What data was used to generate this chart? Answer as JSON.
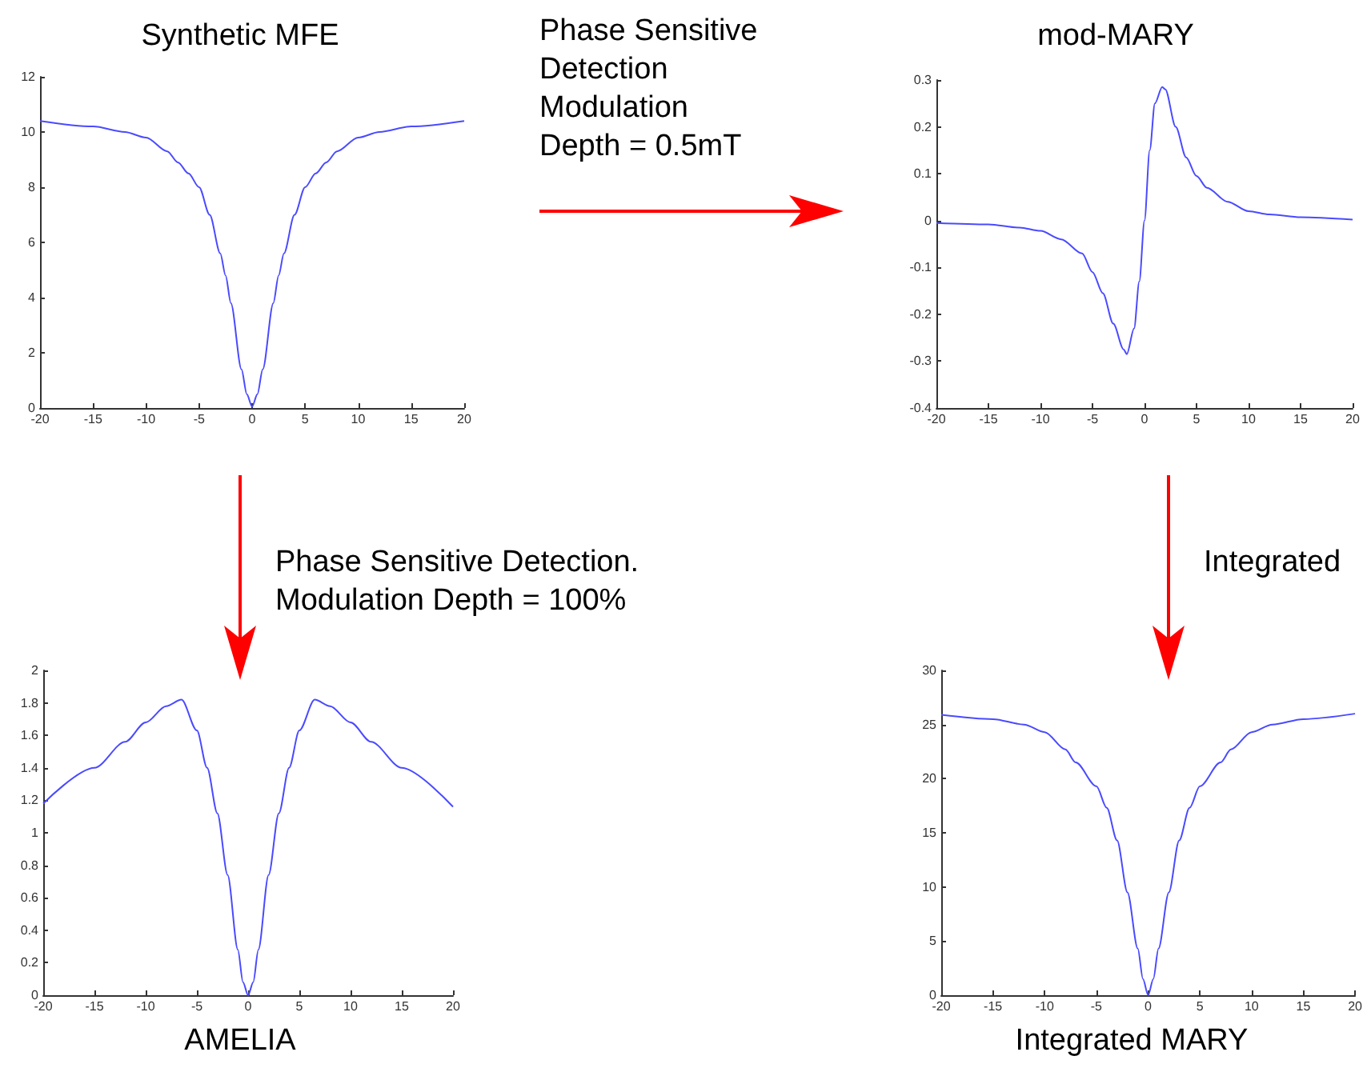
{
  "chart_data": [
    {
      "type": "line",
      "title": "Synthetic MFE",
      "annotations": [
        "Phase Sensitive\nDetection\nModulation\nDepth = 0.5mT",
        "Phase Sensitive Detection.\nModulation Depth = 100%"
      ],
      "xlim": [
        -20,
        20
      ],
      "xticks": [
        -20,
        -15,
        -10,
        -5,
        0,
        5,
        10,
        15,
        20
      ],
      "ylim": [
        0,
        12
      ],
      "yticks": [
        0,
        2,
        4,
        6,
        8,
        10,
        12
      ],
      "grid": false,
      "marker": "none",
      "series": [
        {
          "color": "#4a4aff",
          "x": [
            -20,
            -15,
            -12,
            -10,
            -8,
            -7,
            -6,
            -5,
            -4,
            -3,
            -2.5,
            -2,
            -1,
            -0.5,
            0,
            0.5,
            1,
            2,
            2.5,
            3,
            4,
            5,
            6,
            7,
            8,
            10,
            12,
            15,
            20
          ],
          "values": [
            10.4,
            10.2,
            10.0,
            9.8,
            9.3,
            8.9,
            8.5,
            8.0,
            7.0,
            5.6,
            4.8,
            3.8,
            1.4,
            0.5,
            0.05,
            0.5,
            1.4,
            3.8,
            4.8,
            5.6,
            7.0,
            8.0,
            8.5,
            8.9,
            9.3,
            9.8,
            10.0,
            10.2,
            10.4
          ]
        }
      ]
    },
    {
      "type": "line",
      "title": "mod-MARY",
      "annotations": [
        "Integrated"
      ],
      "xlim": [
        -20,
        20
      ],
      "xticks": [
        -20,
        -15,
        -10,
        -5,
        0,
        5,
        10,
        15,
        20
      ],
      "ylim": [
        -0.4,
        0.3
      ],
      "yticks": [
        -0.4,
        -0.3,
        -0.2,
        -0.1,
        0,
        0.1,
        0.2,
        0.3
      ],
      "grid": false,
      "marker": "none",
      "series": [
        {
          "color": "#4a4aff",
          "x": [
            -20,
            -15,
            -12,
            -10,
            -8,
            -6,
            -5,
            -4,
            -3,
            -2,
            -1.7,
            -1,
            -0.5,
            0,
            0.5,
            1,
            1.7,
            2,
            3,
            4,
            5,
            6,
            8,
            10,
            12,
            15,
            20
          ],
          "values": [
            -0.005,
            -0.008,
            -0.015,
            -0.022,
            -0.04,
            -0.07,
            -0.11,
            -0.155,
            -0.22,
            -0.275,
            -0.285,
            -0.23,
            -0.13,
            0.0,
            0.15,
            0.25,
            0.285,
            0.28,
            0.2,
            0.135,
            0.095,
            0.07,
            0.04,
            0.02,
            0.013,
            0.007,
            0.002
          ]
        }
      ]
    },
    {
      "type": "line",
      "title": "AMELIA",
      "xlim": [
        -20,
        20
      ],
      "xticks": [
        -20,
        -15,
        -10,
        -5,
        0,
        5,
        10,
        15,
        20
      ],
      "ylim": [
        0,
        2
      ],
      "yticks": [
        0,
        0.2,
        0.4,
        0.6,
        0.8,
        1,
        1.2,
        1.4,
        1.6,
        1.8,
        2
      ],
      "grid": false,
      "marker": "none",
      "series": [
        {
          "color": "#4a4aff",
          "x": [
            -20,
            -15,
            -12,
            -10,
            -8,
            -6.5,
            -5,
            -4,
            -3,
            -2,
            -1,
            -0.5,
            0,
            0.5,
            1,
            2,
            3,
            4,
            5,
            6.5,
            8,
            10,
            12,
            15,
            20
          ],
          "values": [
            1.18,
            1.4,
            1.56,
            1.68,
            1.78,
            1.82,
            1.63,
            1.4,
            1.12,
            0.74,
            0.28,
            0.08,
            0.0,
            0.08,
            0.28,
            0.74,
            1.12,
            1.4,
            1.63,
            1.82,
            1.78,
            1.68,
            1.56,
            1.4,
            1.16
          ]
        }
      ]
    },
    {
      "type": "line",
      "title": "Integrated MARY",
      "xlim": [
        -20,
        20
      ],
      "xticks": [
        -20,
        -15,
        -10,
        -5,
        0,
        5,
        10,
        15,
        20
      ],
      "ylim": [
        0,
        30
      ],
      "yticks": [
        0,
        5,
        10,
        15,
        20,
        25,
        30
      ],
      "grid": false,
      "marker": "none",
      "series": [
        {
          "color": "#4a4aff",
          "x": [
            -20,
            -15,
            -12,
            -10,
            -8,
            -7,
            -5,
            -4,
            -3,
            -2,
            -1,
            -0.5,
            0,
            0.5,
            1,
            2,
            3,
            4,
            5,
            7,
            8,
            10,
            12,
            15,
            20
          ],
          "values": [
            25.9,
            25.5,
            25.0,
            24.3,
            22.7,
            21.5,
            19.3,
            17.3,
            14.3,
            9.5,
            4.3,
            1.5,
            0.0,
            1.5,
            4.3,
            9.5,
            14.3,
            17.3,
            19.3,
            21.5,
            22.7,
            24.3,
            25.0,
            25.5,
            26.0
          ]
        }
      ]
    }
  ]
}
